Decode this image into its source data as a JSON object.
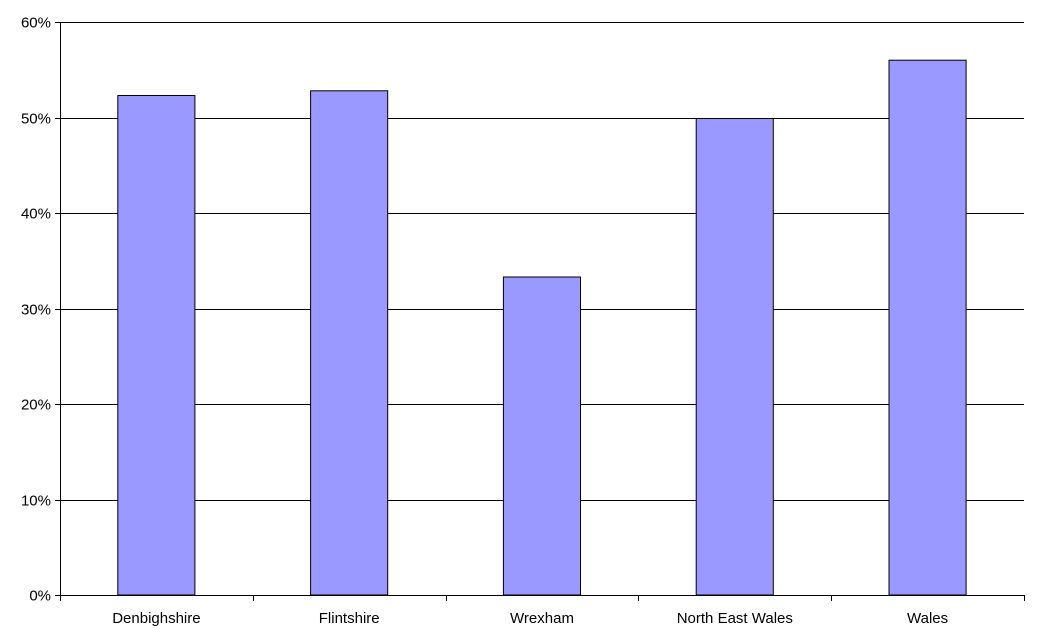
{
  "chart_data": {
    "type": "bar",
    "categories": [
      "Denbighshire",
      "Flintshire",
      "Wrexham",
      "North East Wales",
      "Wales"
    ],
    "values": [
      52.3,
      52.8,
      33.3,
      49.9,
      56.0
    ],
    "title": "",
    "xlabel": "",
    "ylabel": "",
    "ylim": [
      0,
      60
    ],
    "yticks": [
      0,
      10,
      20,
      30,
      40,
      50,
      60
    ],
    "ytick_labels": [
      "0%",
      "10%",
      "20%",
      "30%",
      "40%",
      "50%",
      "60%"
    ],
    "grid": true,
    "legend": "none",
    "colors": {
      "bar_fill": "#9999ff",
      "bar_stroke": "#000000",
      "grid": "#000000",
      "axis": "#000000"
    }
  }
}
